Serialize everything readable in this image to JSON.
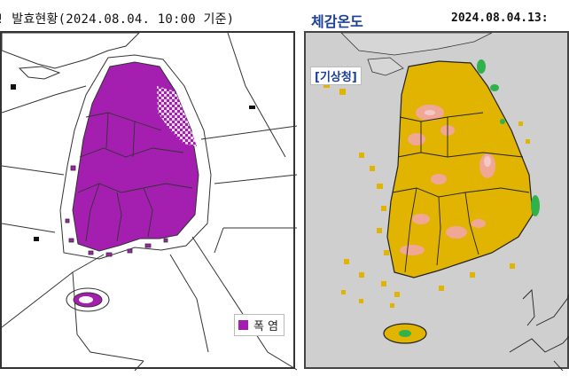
{
  "left_panel": {
    "title": "! 발효현황(2024.08.04. 10:00 기준)",
    "legend_label": "폭 염",
    "colors": {
      "warning_fill": "#a41fb0",
      "advisory_hatch": "#ffffff",
      "jeju_fill": "#ffffff"
    }
  },
  "right_panel": {
    "title": "체감온도",
    "timestamp": "2024.08.04.13:",
    "source_tag": "[기상청]",
    "colors": {
      "background": "#cfcfcf",
      "base_heat": "#e0b400",
      "high_heat": "#f2a6a6",
      "low_heat": "#2fb24a"
    }
  }
}
